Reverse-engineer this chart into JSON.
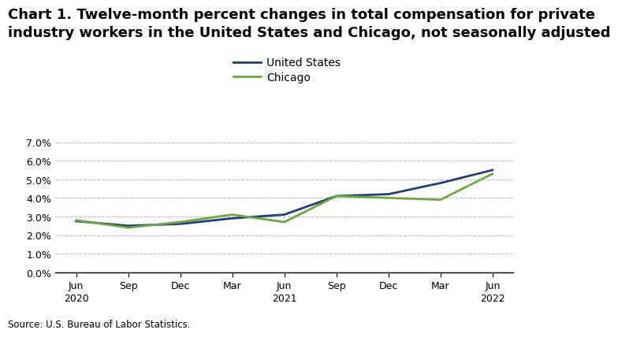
{
  "title_line1": "Chart 1. Twelve-month percent changes in total compensation for private",
  "title_line2": "industry workers in the United States and Chicago, not seasonally adjusted",
  "source": "Source: U.S. Bureau of Labor Statistics.",
  "x_labels": [
    "Jun\n2020",
    "Sep",
    "Dec",
    "Mar",
    "Jun\n2021",
    "Sep",
    "Dec",
    "Mar",
    "Jun\n2022"
  ],
  "us_values": [
    2.75,
    2.5,
    2.6,
    2.9,
    3.1,
    4.1,
    4.2,
    4.8,
    5.5
  ],
  "chicago_values": [
    2.8,
    2.4,
    2.7,
    3.1,
    2.7,
    4.1,
    4.0,
    3.9,
    5.3
  ],
  "us_color": "#1f3f7a",
  "chicago_color": "#6aaa3a",
  "ylim": [
    0.0,
    7.0
  ],
  "yticks": [
    0.0,
    1.0,
    2.0,
    3.0,
    4.0,
    5.0,
    6.0,
    7.0
  ],
  "legend_labels": [
    "United States",
    "Chicago"
  ],
  "line_width": 2.0,
  "grid_color": "#c0c0c0",
  "background_color": "#ffffff",
  "title_fontsize": 13,
  "legend_fontsize": 10,
  "tick_fontsize": 9,
  "source_fontsize": 8.5
}
